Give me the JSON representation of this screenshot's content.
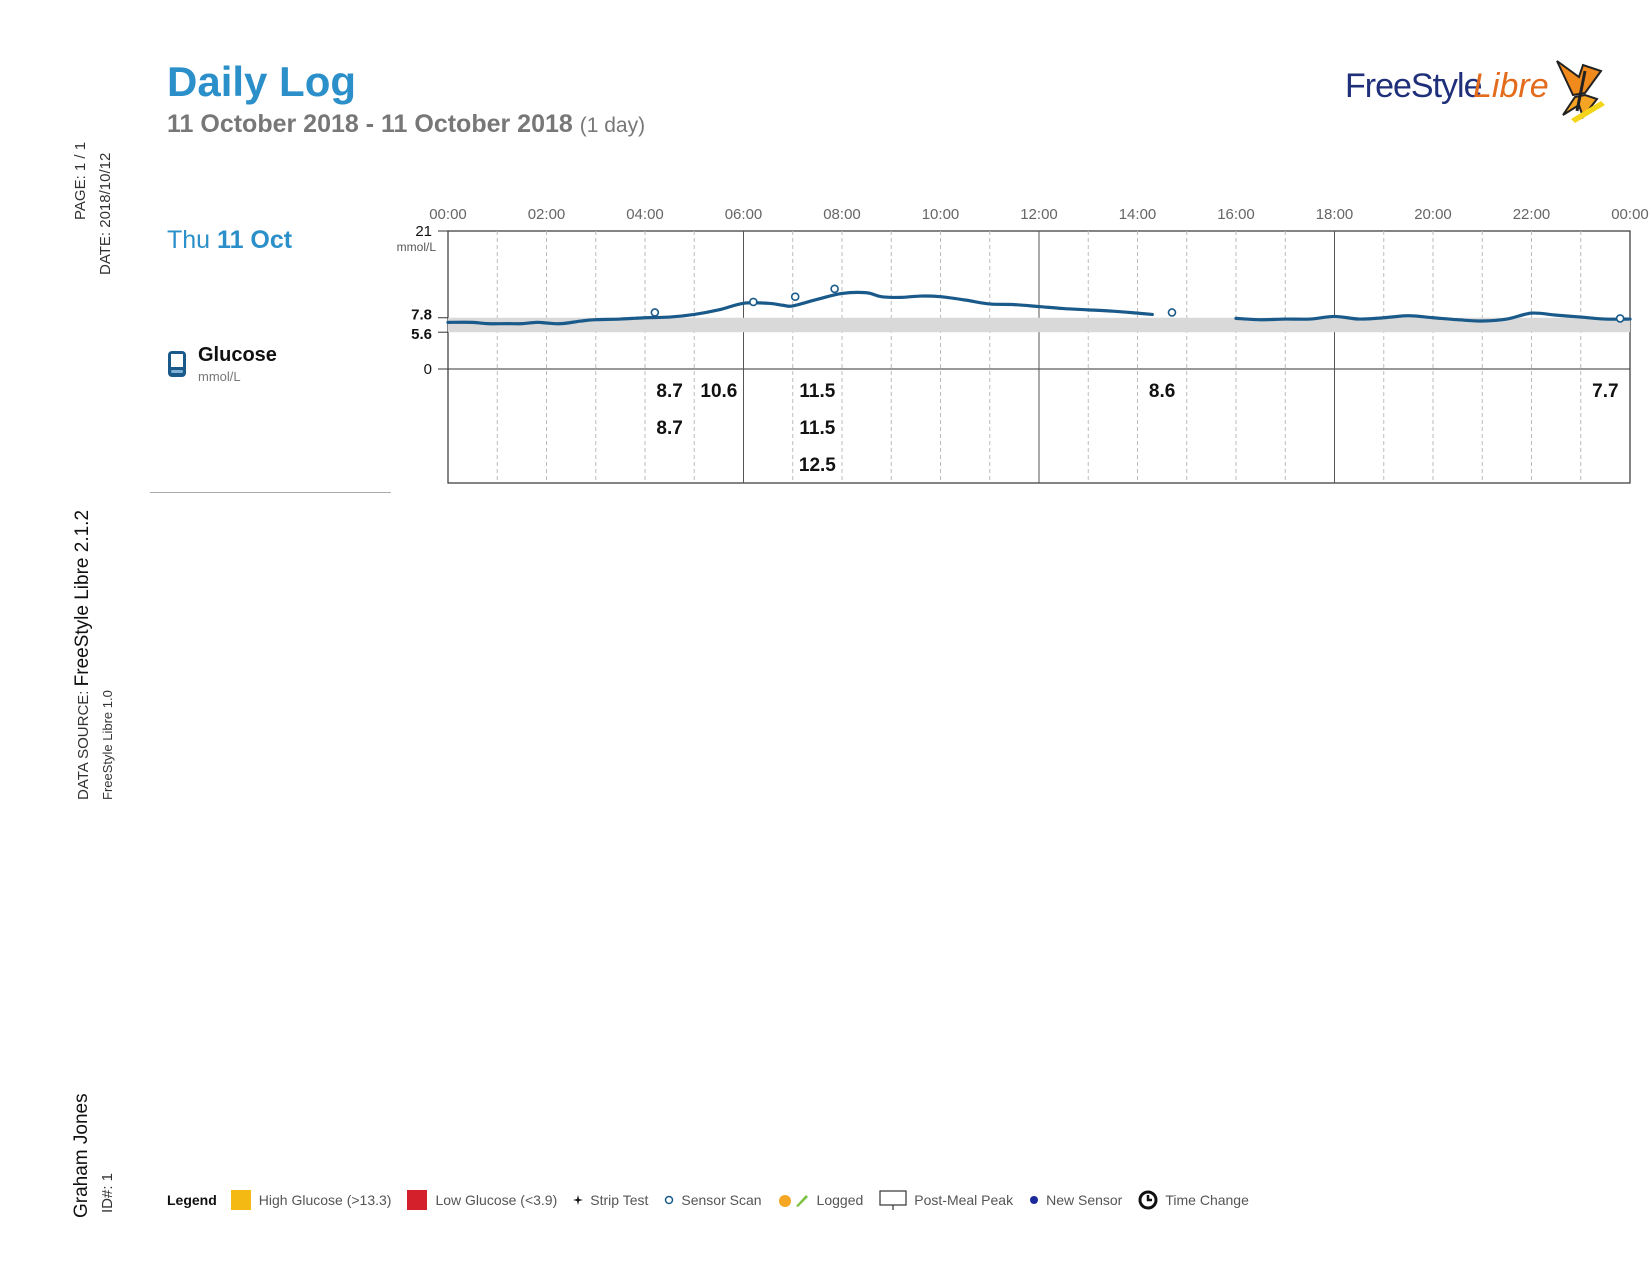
{
  "header": {
    "title": "Daily Log",
    "date_range": "11 October 2018 - 11 October 2018",
    "span": "(1 day)",
    "logo_word_1": "FreeStyle",
    "logo_word_2": "Libre"
  },
  "side": {
    "page": "PAGE: 1 / 1",
    "date": "DATE: 2018/10/12",
    "data_source_label": "DATA SOURCE:",
    "data_source": "FreeStyle Libre 2.1.2",
    "data_source_sub": "FreeStyle Libre 1.0",
    "patient": "Graham Jones",
    "id": "ID#: 1"
  },
  "day": {
    "weekday": "Thu",
    "date": "11 Oct"
  },
  "glucose": {
    "label": "Glucose",
    "unit": "mmol/L"
  },
  "chart_data": {
    "type": "line",
    "unit_label": "mmol/L",
    "x_ticks": [
      "00:00",
      "02:00",
      "04:00",
      "06:00",
      "08:00",
      "10:00",
      "12:00",
      "14:00",
      "16:00",
      "18:00",
      "20:00",
      "22:00",
      "00:00"
    ],
    "x_range_hours": [
      0,
      24
    ],
    "y_range": [
      0,
      21
    ],
    "y_ticks": [
      "21",
      "7.8",
      "5.6",
      "0"
    ],
    "target_range": [
      5.6,
      7.8
    ],
    "series": [
      {
        "segments": [
          [
            [
              0.0,
              7.1
            ],
            [
              0.5,
              7.1
            ],
            [
              0.8,
              6.9
            ],
            [
              1.2,
              6.9
            ],
            [
              1.5,
              6.9
            ],
            [
              1.8,
              7.1
            ],
            [
              2.0,
              7.0
            ],
            [
              2.3,
              6.9
            ],
            [
              2.7,
              7.3
            ],
            [
              3.0,
              7.5
            ],
            [
              3.5,
              7.6
            ],
            [
              4.0,
              7.8
            ],
            [
              4.5,
              7.9
            ],
            [
              5.0,
              8.3
            ],
            [
              5.5,
              9.0
            ],
            [
              6.0,
              10.0
            ],
            [
              6.5,
              10.0
            ],
            [
              6.8,
              9.7
            ],
            [
              7.0,
              9.6
            ],
            [
              7.5,
              10.6
            ],
            [
              8.0,
              11.5
            ],
            [
              8.5,
              11.6
            ],
            [
              8.8,
              11.0
            ],
            [
              9.2,
              10.9
            ],
            [
              9.6,
              11.1
            ],
            [
              10.0,
              11.0
            ],
            [
              10.5,
              10.5
            ],
            [
              11.0,
              9.9
            ],
            [
              11.5,
              9.8
            ],
            [
              12.0,
              9.5
            ],
            [
              12.5,
              9.2
            ],
            [
              13.0,
              9.0
            ],
            [
              13.5,
              8.8
            ],
            [
              14.0,
              8.5
            ],
            [
              14.3,
              8.3
            ]
          ],
          [
            [
              16.0,
              7.7
            ],
            [
              16.5,
              7.5
            ],
            [
              17.0,
              7.6
            ],
            [
              17.5,
              7.6
            ],
            [
              18.0,
              8.0
            ],
            [
              18.5,
              7.6
            ],
            [
              19.0,
              7.8
            ],
            [
              19.5,
              8.1
            ],
            [
              20.0,
              7.8
            ],
            [
              20.5,
              7.5
            ],
            [
              21.0,
              7.3
            ],
            [
              21.5,
              7.6
            ],
            [
              22.0,
              8.5
            ],
            [
              22.5,
              8.2
            ],
            [
              23.0,
              7.9
            ],
            [
              23.5,
              7.6
            ],
            [
              24.0,
              7.6
            ]
          ]
        ]
      }
    ],
    "sensor_scans": [
      [
        4.2,
        8.6
      ],
      [
        6.2,
        10.2
      ],
      [
        7.05,
        11.0
      ],
      [
        7.85,
        12.2
      ],
      [
        14.7,
        8.6
      ],
      [
        23.8,
        7.7
      ]
    ],
    "value_labels": [
      {
        "x": 4.5,
        "row": 1,
        "text": "8.7"
      },
      {
        "x": 4.5,
        "row": 2,
        "text": "8.7"
      },
      {
        "x": 5.5,
        "row": 1,
        "text": "10.6"
      },
      {
        "x": 7.5,
        "row": 1,
        "text": "11.5"
      },
      {
        "x": 7.5,
        "row": 2,
        "text": "11.5"
      },
      {
        "x": 7.5,
        "row": 3,
        "text": "12.5"
      },
      {
        "x": 14.5,
        "row": 1,
        "text": "8.6"
      },
      {
        "x": 23.5,
        "row": 1,
        "text": "7.7"
      }
    ],
    "line_color": "#1a5a8a",
    "target_band_color": "#d9d9d9"
  },
  "legend": {
    "title": "Legend",
    "items": [
      {
        "label": "High Glucose (>13.3)",
        "color": "#f5b914",
        "icon": "high-glucose-swatch"
      },
      {
        "label": "Low Glucose (<3.9)",
        "color": "#d3202a",
        "icon": "low-glucose-swatch"
      },
      {
        "label": "Strip Test",
        "icon": "strip-test-icon"
      },
      {
        "label": "Sensor Scan",
        "icon": "sensor-scan-icon"
      },
      {
        "label": "Logged",
        "icon": "logged-icon"
      },
      {
        "label": "Post-Meal Peak",
        "icon": "post-meal-peak-icon"
      },
      {
        "label": "New Sensor",
        "icon": "new-sensor-icon"
      },
      {
        "label": "Time Change",
        "icon": "time-change-icon"
      }
    ]
  }
}
